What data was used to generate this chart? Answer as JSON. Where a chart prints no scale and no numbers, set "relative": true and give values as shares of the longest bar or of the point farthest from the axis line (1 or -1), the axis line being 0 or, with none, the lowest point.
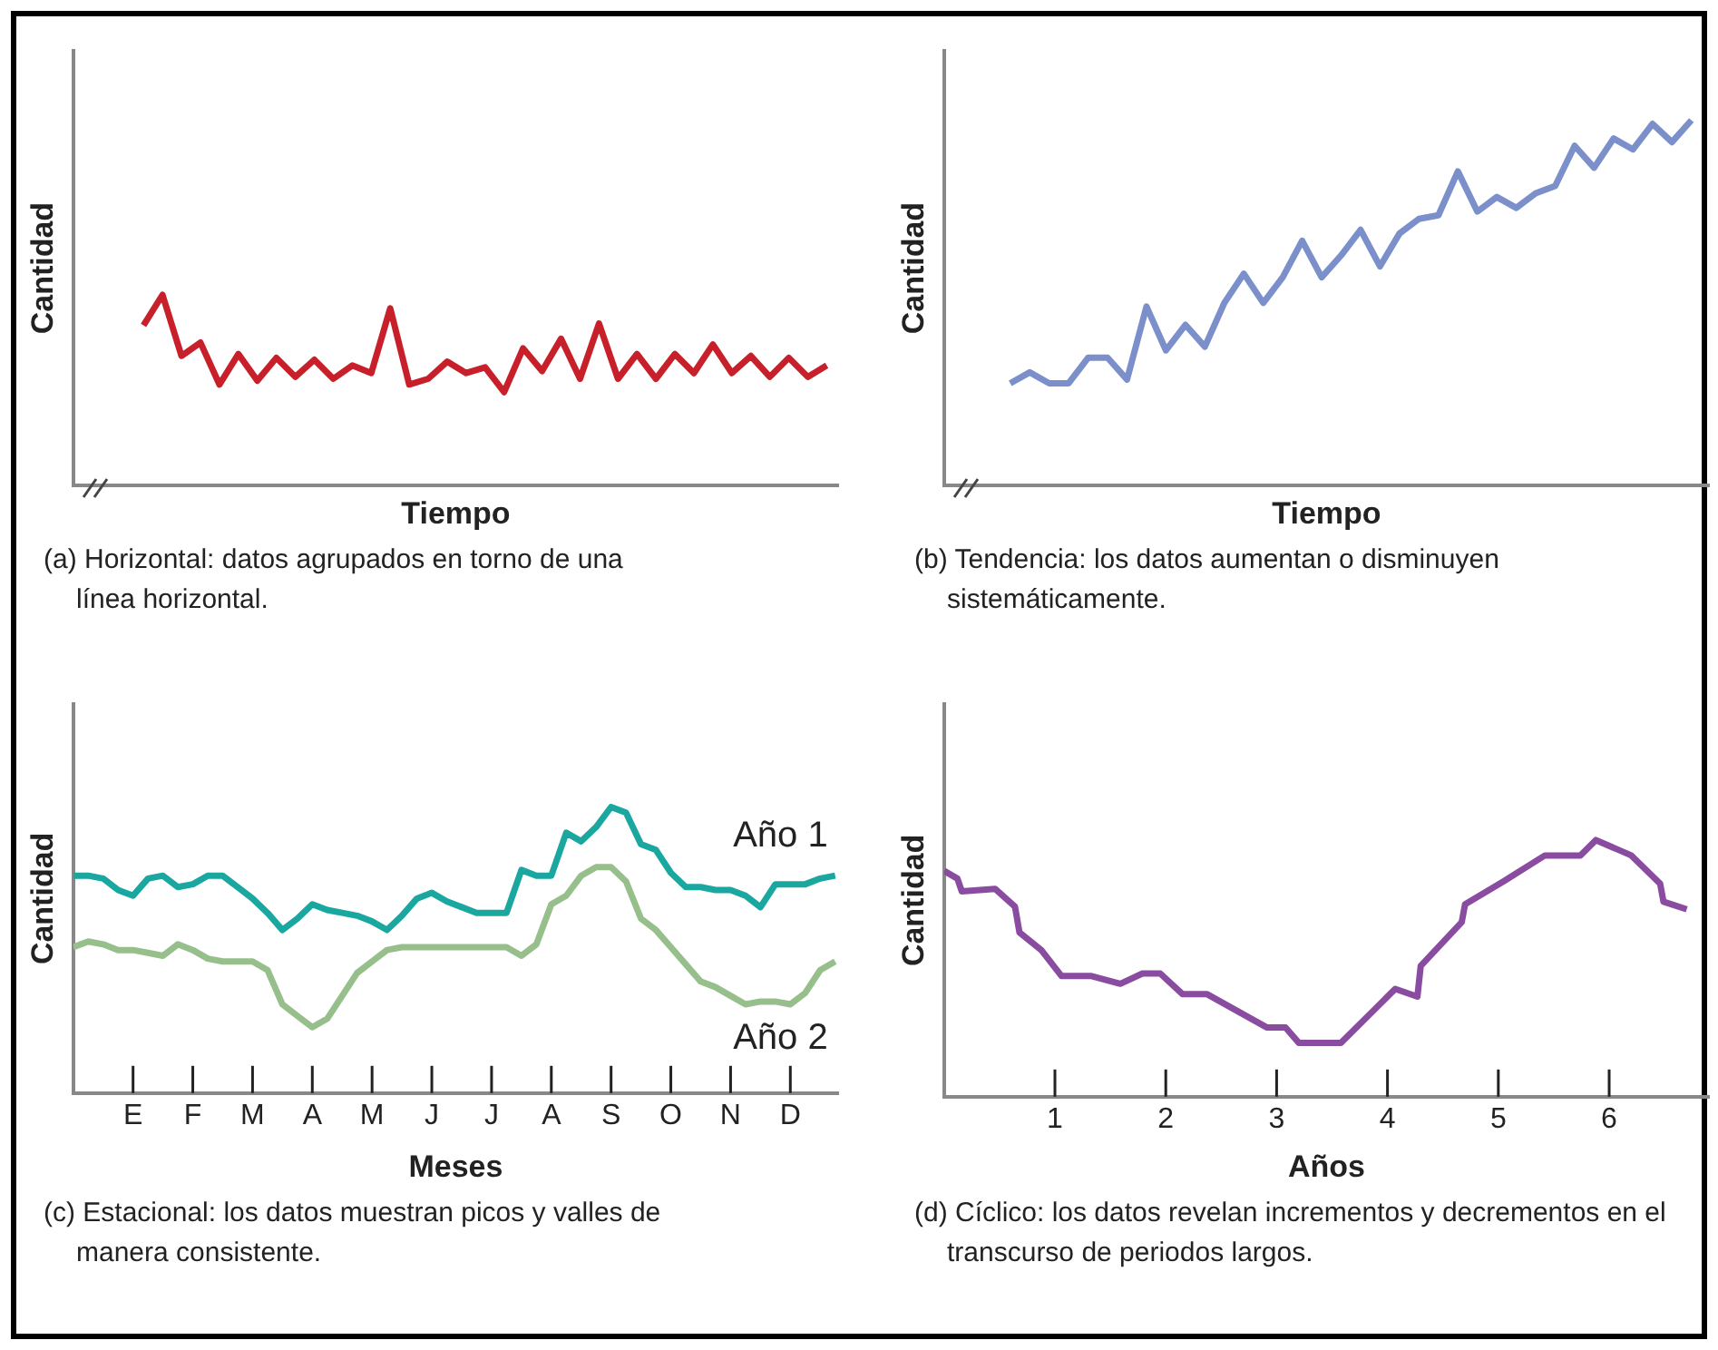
{
  "chart_data": [
    {
      "type": "line",
      "xlabel": "Tiempo",
      "ylabel": "Cantidad",
      "relative": true,
      "grid": false,
      "color": "#c8202a",
      "annotations": [
        "(a) Horizontal: datos agrupados en torno de una línea horizontal."
      ],
      "categories": [
        null,
        null,
        null,
        null,
        null,
        null,
        null,
        null,
        null,
        null,
        null,
        null,
        null,
        null,
        null,
        null,
        null,
        null,
        null,
        null,
        null,
        null,
        null,
        null,
        null,
        null,
        null,
        null,
        null,
        null,
        null,
        null,
        null,
        null,
        null,
        null,
        null
      ],
      "values": [
        0.84,
        1.0,
        0.68,
        0.75,
        0.53,
        0.69,
        0.55,
        0.67,
        0.57,
        0.66,
        0.56,
        0.63,
        0.59,
        0.93,
        0.53,
        0.56,
        0.65,
        0.59,
        0.62,
        0.49,
        0.72,
        0.6,
        0.77,
        0.56,
        0.85,
        0.56,
        0.69,
        0.56,
        0.69,
        0.59,
        0.74,
        0.59,
        0.68,
        0.57,
        0.67,
        0.57,
        0.63
      ]
    },
    {
      "type": "line",
      "xlabel": "Tiempo",
      "ylabel": "Cantidad",
      "relative": true,
      "grid": false,
      "color": "#7b8fcb",
      "annotations": [
        "(b) Tendencia: los datos aumentan o disminuyen sistemáticamente."
      ],
      "categories": [
        null,
        null,
        null,
        null,
        null,
        null,
        null,
        null,
        null,
        null,
        null,
        null,
        null,
        null,
        null,
        null,
        null,
        null,
        null,
        null,
        null,
        null,
        null,
        null,
        null,
        null,
        null,
        null,
        null,
        null,
        null,
        null,
        null,
        null,
        null,
        null
      ],
      "values": [
        0.28,
        0.31,
        0.28,
        0.28,
        0.35,
        0.35,
        0.29,
        0.49,
        0.37,
        0.44,
        0.38,
        0.5,
        0.58,
        0.5,
        0.57,
        0.67,
        0.57,
        0.63,
        0.7,
        0.6,
        0.69,
        0.73,
        0.74,
        0.86,
        0.75,
        0.79,
        0.76,
        0.8,
        0.82,
        0.93,
        0.87,
        0.95,
        0.92,
        0.99,
        0.94,
        1.0
      ]
    },
    {
      "type": "line",
      "xlabel": "Meses",
      "ylabel": "Cantidad",
      "relative": true,
      "grid": false,
      "annotations": [
        "(c) Estacional: los datos muestran picos y valles de manera consistente."
      ],
      "categories": [
        null,
        null,
        null,
        null,
        "E",
        null,
        null,
        null,
        "F",
        null,
        null,
        null,
        "M",
        null,
        null,
        null,
        "A",
        null,
        null,
        null,
        "M",
        null,
        null,
        null,
        "J",
        null,
        null,
        null,
        "J",
        null,
        null,
        null,
        "A",
        null,
        null,
        null,
        "S",
        null,
        null,
        null,
        "O",
        null,
        null,
        null,
        "N",
        null,
        null,
        null,
        "D",
        null,
        null,
        null
      ],
      "series": [
        {
          "name": "Año 1",
          "color": "#1aa7a0",
          "values": [
            0.76,
            0.76,
            0.75,
            0.71,
            0.69,
            0.75,
            0.76,
            0.72,
            0.73,
            0.76,
            0.76,
            0.72,
            0.68,
            0.63,
            0.57,
            0.61,
            0.66,
            0.64,
            0.63,
            0.62,
            0.6,
            0.57,
            0.62,
            0.68,
            0.7,
            0.67,
            0.65,
            0.63,
            0.63,
            0.63,
            0.78,
            0.76,
            0.76,
            0.91,
            0.88,
            0.93,
            1.0,
            0.98,
            0.87,
            0.85,
            0.77,
            0.72,
            0.72,
            0.71,
            0.71,
            0.69,
            0.65,
            0.73,
            0.73,
            0.73,
            0.75,
            0.76
          ]
        },
        {
          "name": "Año 2",
          "color": "#97bf8c",
          "values": [
            0.51,
            0.53,
            0.52,
            0.5,
            0.5,
            0.49,
            0.48,
            0.52,
            0.5,
            0.47,
            0.46,
            0.46,
            0.46,
            0.43,
            0.31,
            0.27,
            0.23,
            0.26,
            0.34,
            0.42,
            0.46,
            0.5,
            0.51,
            0.51,
            0.51,
            0.51,
            0.51,
            0.51,
            0.51,
            0.51,
            0.48,
            0.52,
            0.66,
            0.69,
            0.76,
            0.79,
            0.79,
            0.74,
            0.61,
            0.57,
            0.51,
            0.45,
            0.39,
            0.37,
            0.34,
            0.31,
            0.32,
            0.32,
            0.31,
            0.35,
            0.43,
            0.46
          ]
        }
      ]
    },
    {
      "type": "line",
      "xlabel": "Años",
      "ylabel": "Cantidad",
      "relative": true,
      "grid": false,
      "color": "#8a4ca0",
      "annotations": [
        "(d) Cíclico: los datos revelan incrementos y decrementos en el transcurso de periodos largos."
      ],
      "xlim": [
        0,
        6.9
      ],
      "xticks": [
        1,
        2,
        3,
        4,
        5,
        6
      ],
      "x": [
        0,
        0.12,
        0.16,
        0.46,
        0.64,
        0.68,
        0.88,
        1.06,
        1.33,
        1.59,
        1.79,
        1.95,
        2.15,
        2.37,
        2.91,
        3.08,
        3.2,
        3.58,
        4.07,
        4.27,
        4.3,
        4.67,
        4.7,
        5.05,
        5.42,
        5.74,
        5.88,
        6.2,
        6.46,
        6.49,
        6.7
      ],
      "values": [
        0.88,
        0.85,
        0.8,
        0.81,
        0.74,
        0.64,
        0.57,
        0.47,
        0.47,
        0.44,
        0.48,
        0.48,
        0.4,
        0.4,
        0.27,
        0.27,
        0.21,
        0.21,
        0.42,
        0.39,
        0.51,
        0.68,
        0.75,
        0.84,
        0.94,
        0.94,
        1.0,
        0.94,
        0.83,
        0.76,
        0.73
      ]
    }
  ]
}
